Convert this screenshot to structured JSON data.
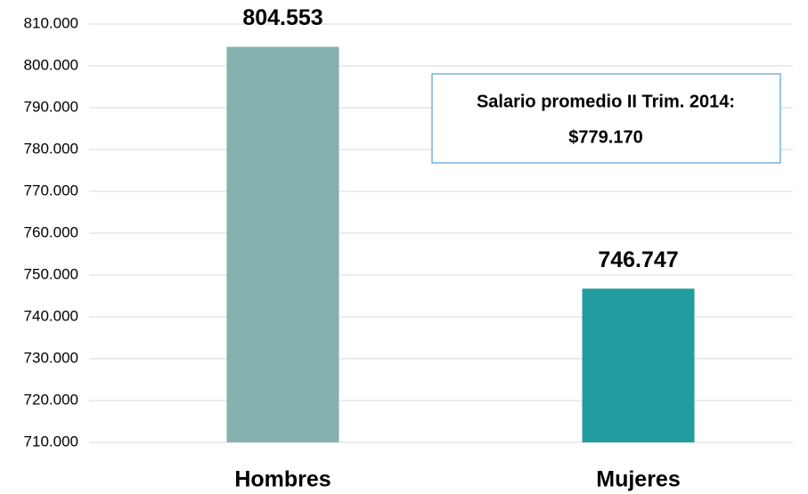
{
  "chart_data": {
    "type": "bar",
    "categories": [
      "Hombres",
      "Mujeres"
    ],
    "values": [
      804553,
      746747
    ],
    "value_labels": [
      "804.553",
      "746.747"
    ],
    "colors": [
      "#85b1b0",
      "#229c9e"
    ],
    "ylim": [
      710000,
      810000
    ],
    "yticks": [
      {
        "value": 710000,
        "label": "710.000"
      },
      {
        "value": 720000,
        "label": "720.000"
      },
      {
        "value": 730000,
        "label": "730.000"
      },
      {
        "value": 740000,
        "label": "740.000"
      },
      {
        "value": 750000,
        "label": "750.000"
      },
      {
        "value": 760000,
        "label": "760.000"
      },
      {
        "value": 770000,
        "label": "770.000"
      },
      {
        "value": 780000,
        "label": "780.000"
      },
      {
        "value": 790000,
        "label": "790.000"
      },
      {
        "value": 800000,
        "label": "800.000"
      },
      {
        "value": 810000,
        "label": "810.000"
      }
    ],
    "grid": true,
    "annotation": [
      "Salario promedio II Trim. 2014:",
      "$779.170"
    ]
  }
}
